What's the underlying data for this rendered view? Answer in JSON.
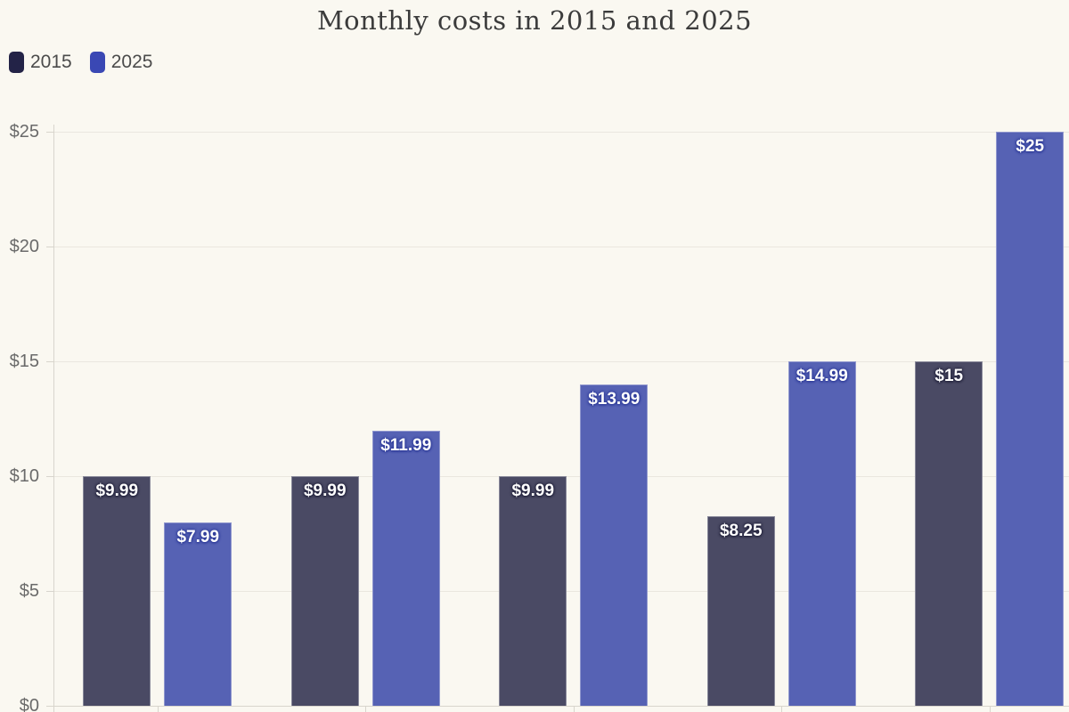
{
  "chart_data": {
    "type": "bar",
    "title": "Monthly costs in 2015 and 2025",
    "categories": [
      "",
      "",
      "",
      "",
      ""
    ],
    "series": [
      {
        "name": "2015",
        "values": [
          9.99,
          9.99,
          9.99,
          8.25,
          15
        ],
        "value_labels": [
          "$9.99",
          "$9.99",
          "$9.99",
          "$8.25",
          "$15"
        ],
        "bar_color": "#4A4A64",
        "legend_color": "#232347"
      },
      {
        "name": "2025",
        "values": [
          7.99,
          11.99,
          13.99,
          14.99,
          25
        ],
        "value_labels": [
          "$7.99",
          "$11.99",
          "$13.99",
          "$14.99",
          "$25"
        ],
        "bar_color": "#5662B4",
        "legend_color": "#3A48B4"
      }
    ],
    "ylim": [
      0,
      25
    ],
    "yticks": [
      0,
      5,
      10,
      15,
      20,
      25
    ],
    "ytick_labels": [
      "$0",
      "$5",
      "$10",
      "$15",
      "$20",
      "$25"
    ],
    "grid": "horizontal",
    "legend_position": "top-left",
    "colors": {
      "background": "#FAF8F1",
      "gridline": "#EAE7DF",
      "axis": "#D8D5CD",
      "title_text": "#3B3B3B",
      "tick_text": "#6A6A6A",
      "value_label_text": "#FFFFFF"
    }
  }
}
